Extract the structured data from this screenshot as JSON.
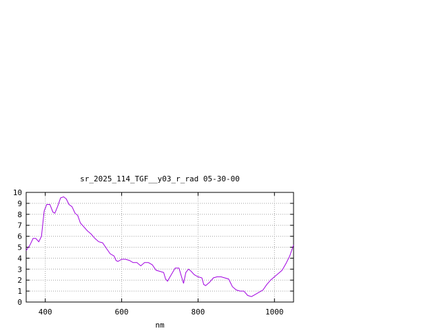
{
  "chart_data": {
    "type": "line",
    "title": "sr_2025_114_TGF__y03_r_rad 05-30-00",
    "xlabel": "nm",
    "ylabel": "",
    "xlim": [
      350,
      1050
    ],
    "ylim": [
      0,
      10
    ],
    "xticks": [
      400,
      600,
      800,
      1000
    ],
    "yticks": [
      0,
      1,
      2,
      3,
      4,
      5,
      6,
      7,
      8,
      9,
      10
    ],
    "grid": true,
    "series_color": "#a000e0",
    "series": [
      {
        "x": [
          350,
          360,
          368,
          375,
          383,
          390,
          397,
          404,
          412,
          420,
          425,
          432,
          440,
          448,
          455,
          462,
          470,
          478,
          485,
          492,
          500,
          510,
          520,
          530,
          540,
          550,
          560,
          570,
          580,
          585,
          590,
          600,
          610,
          620,
          630,
          640,
          650,
          660,
          670,
          680,
          690,
          700,
          710,
          715,
          720,
          730,
          740,
          750,
          756,
          762,
          768,
          775,
          782,
          790,
          800,
          810,
          815,
          820,
          830,
          840,
          850,
          860,
          870,
          880,
          890,
          900,
          910,
          920,
          930,
          940,
          950,
          960,
          970,
          980,
          990,
          1000,
          1010,
          1020,
          1030,
          1040,
          1050
        ],
        "y": [
          4.7,
          5.2,
          5.8,
          5.8,
          5.5,
          6.0,
          8.3,
          8.9,
          8.9,
          8.2,
          8.1,
          8.7,
          9.5,
          9.6,
          9.4,
          8.9,
          8.7,
          8.1,
          7.9,
          7.2,
          6.9,
          6.5,
          6.2,
          5.8,
          5.5,
          5.4,
          4.9,
          4.4,
          4.2,
          3.8,
          3.7,
          3.9,
          3.9,
          3.8,
          3.6,
          3.6,
          3.3,
          3.6,
          3.6,
          3.4,
          2.9,
          2.8,
          2.7,
          2.1,
          1.9,
          2.5,
          3.1,
          3.1,
          2.4,
          1.7,
          2.7,
          3.0,
          2.8,
          2.5,
          2.3,
          2.2,
          1.6,
          1.5,
          1.8,
          2.2,
          2.3,
          2.3,
          2.2,
          2.1,
          1.4,
          1.1,
          1.0,
          1.0,
          0.6,
          0.5,
          0.7,
          0.9,
          1.1,
          1.6,
          2.0,
          2.3,
          2.6,
          2.9,
          3.5,
          4.2,
          5.2
        ]
      }
    ]
  }
}
